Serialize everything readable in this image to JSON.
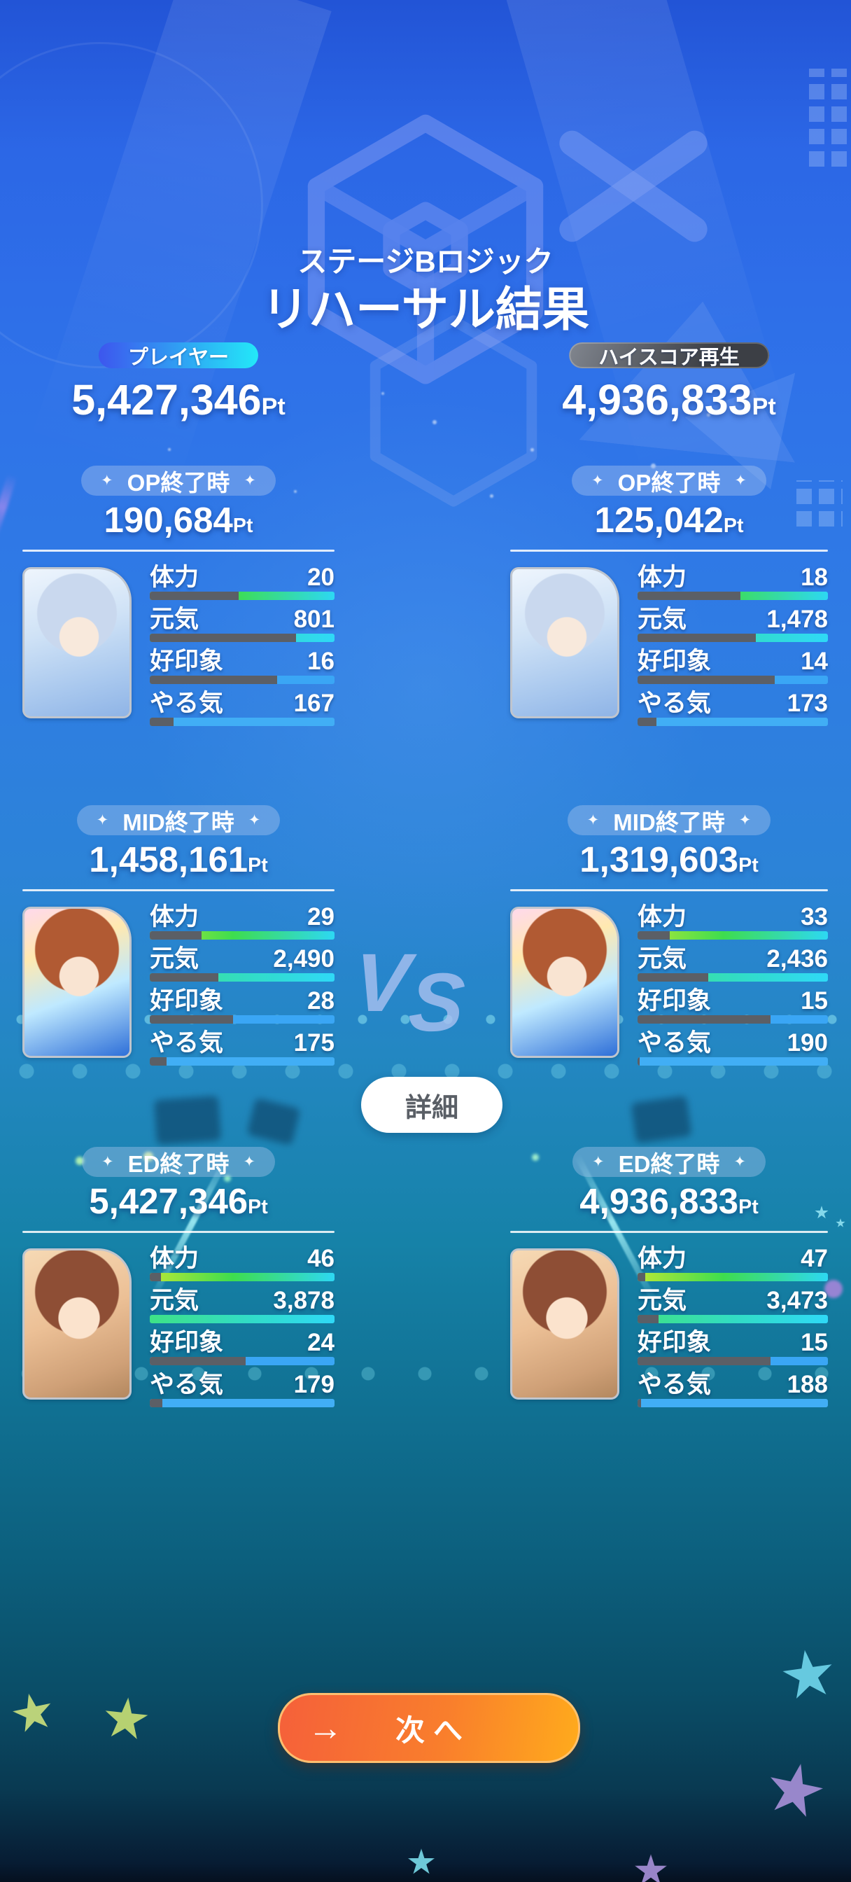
{
  "title": {
    "subtitle": "ステージBロジック",
    "main": "リハーサル結果"
  },
  "sparkle": "✦",
  "pt_unit": "Pt",
  "vs_label": "VS",
  "detail_button_label": "詳細",
  "next_button_label": "次へ",
  "next_button_arrow": "→",
  "stat_names": [
    "体力",
    "元気",
    "好印象",
    "やる気"
  ],
  "colors": {
    "background_top": "#2c67e6",
    "background_teal": "#107092",
    "background_bottom": "#071c33",
    "player_badge_gradient": [
      "#3d56ee",
      "#23e8f8"
    ],
    "highscore_badge_gradient": [
      "#81868f",
      "#3c3f45"
    ],
    "bar_track": "#5b5f66",
    "stamina_bar_gradient": [
      "#b9e836",
      "#3edd4e",
      "#2dd8f3"
    ],
    "genki_bar_gradient": [
      "#3ee286",
      "#2fd9f7"
    ],
    "impression_bar": "#3aa6f5",
    "motivation_bar": "#41aef5",
    "next_button_gradient": [
      "#f5603a",
      "#ffab1c"
    ],
    "detail_button_text": "#5a5f66"
  },
  "columns": [
    {
      "badge": "プレイヤー",
      "total": "5,427,346",
      "phases": [
        {
          "header": "OP終了時",
          "score": "190,684",
          "portrait": "silver-haired-idol",
          "stats": [
            {
              "label": "体力",
              "value": "20",
              "fill_pct": 52
            },
            {
              "label": "元気",
              "value": "801",
              "fill_pct": 21
            },
            {
              "label": "好印象",
              "value": "16",
              "fill_pct": 31
            },
            {
              "label": "やる気",
              "value": "167",
              "fill_pct": 87
            }
          ]
        },
        {
          "header": "MID終了時",
          "score": "1,458,161",
          "portrait": "auburn-haired-idol",
          "stats": [
            {
              "label": "体力",
              "value": "29",
              "fill_pct": 72
            },
            {
              "label": "元気",
              "value": "2,490",
              "fill_pct": 63
            },
            {
              "label": "好印象",
              "value": "28",
              "fill_pct": 55
            },
            {
              "label": "やる気",
              "value": "175",
              "fill_pct": 91
            }
          ]
        },
        {
          "header": "ED終了時",
          "score": "5,427,346",
          "portrait": "brown-haired-idol",
          "stats": [
            {
              "label": "体力",
              "value": "46",
              "fill_pct": 94
            },
            {
              "label": "元気",
              "value": "3,878",
              "fill_pct": 100
            },
            {
              "label": "好印象",
              "value": "24",
              "fill_pct": 48
            },
            {
              "label": "やる気",
              "value": "179",
              "fill_pct": 93
            }
          ]
        }
      ]
    },
    {
      "badge": "ハイスコア再生",
      "total": "4,936,833",
      "phases": [
        {
          "header": "OP終了時",
          "score": "125,042",
          "portrait": "silver-haired-idol",
          "stats": [
            {
              "label": "体力",
              "value": "18",
              "fill_pct": 46
            },
            {
              "label": "元気",
              "value": "1,478",
              "fill_pct": 38
            },
            {
              "label": "好印象",
              "value": "14",
              "fill_pct": 28
            },
            {
              "label": "やる気",
              "value": "173",
              "fill_pct": 90
            }
          ]
        },
        {
          "header": "MID終了時",
          "score": "1,319,603",
          "portrait": "auburn-haired-idol",
          "stats": [
            {
              "label": "体力",
              "value": "33",
              "fill_pct": 83
            },
            {
              "label": "元気",
              "value": "2,436",
              "fill_pct": 63
            },
            {
              "label": "好印象",
              "value": "15",
              "fill_pct": 30
            },
            {
              "label": "やる気",
              "value": "190",
              "fill_pct": 99
            }
          ]
        },
        {
          "header": "ED終了時",
          "score": "4,936,833",
          "portrait": "brown-haired-idol",
          "stats": [
            {
              "label": "体力",
              "value": "47",
              "fill_pct": 96
            },
            {
              "label": "元気",
              "value": "3,473",
              "fill_pct": 89
            },
            {
              "label": "好印象",
              "value": "15",
              "fill_pct": 30
            },
            {
              "label": "やる気",
              "value": "188",
              "fill_pct": 98
            }
          ]
        }
      ]
    }
  ]
}
